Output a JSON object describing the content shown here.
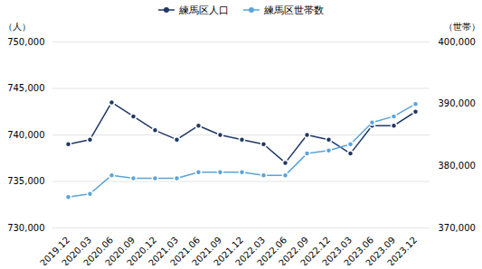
{
  "chart_data": {
    "type": "line",
    "categories": [
      "2019.12",
      "2020.03",
      "2020.06",
      "2020.09",
      "2020.12",
      "2021.03",
      "2021.06",
      "2021.09",
      "2021.12",
      "2022.03",
      "2022.06",
      "2022.09",
      "2022.12",
      "2023.03",
      "2023.06",
      "2023.09",
      "2023.12"
    ],
    "series": [
      {
        "name": "練馬区人口",
        "color": "#1f3864",
        "marker": "circle",
        "values": [
          739000,
          739500,
          743500,
          742000,
          740500,
          739500,
          741000,
          740000,
          739500,
          739000,
          737000,
          740000,
          739500,
          738000,
          741000,
          741000,
          742500
        ]
      },
      {
        "name": "練馬区世帯数",
        "color": "#5ba3d9",
        "marker": "circle",
        "axis": "y2",
        "values": [
          375000,
          375500,
          378500,
          378000,
          378000,
          378000,
          379000,
          379000,
          379000,
          378500,
          378500,
          382000,
          382500,
          383500,
          387000,
          388000,
          390000
        ]
      }
    ],
    "ylabel": "（人）",
    "y2label": "（世帯）",
    "ylim": [
      730000,
      750000
    ],
    "yticks": [
      {
        "value": 730000,
        "label": "730,000"
      },
      {
        "value": 735000,
        "label": "735,000"
      },
      {
        "value": 740000,
        "label": "740,000"
      },
      {
        "value": 745000,
        "label": "745,000"
      },
      {
        "value": 750000,
        "label": "750,000"
      }
    ],
    "y2lim": [
      370000,
      400000
    ],
    "y2ticks": [
      {
        "value": 370000,
        "label": "370,000"
      },
      {
        "value": 380000,
        "label": "380,000"
      },
      {
        "value": 390000,
        "label": "390,000"
      },
      {
        "value": 400000,
        "label": "400,000"
      }
    ],
    "grid": true,
    "legend": "top"
  }
}
